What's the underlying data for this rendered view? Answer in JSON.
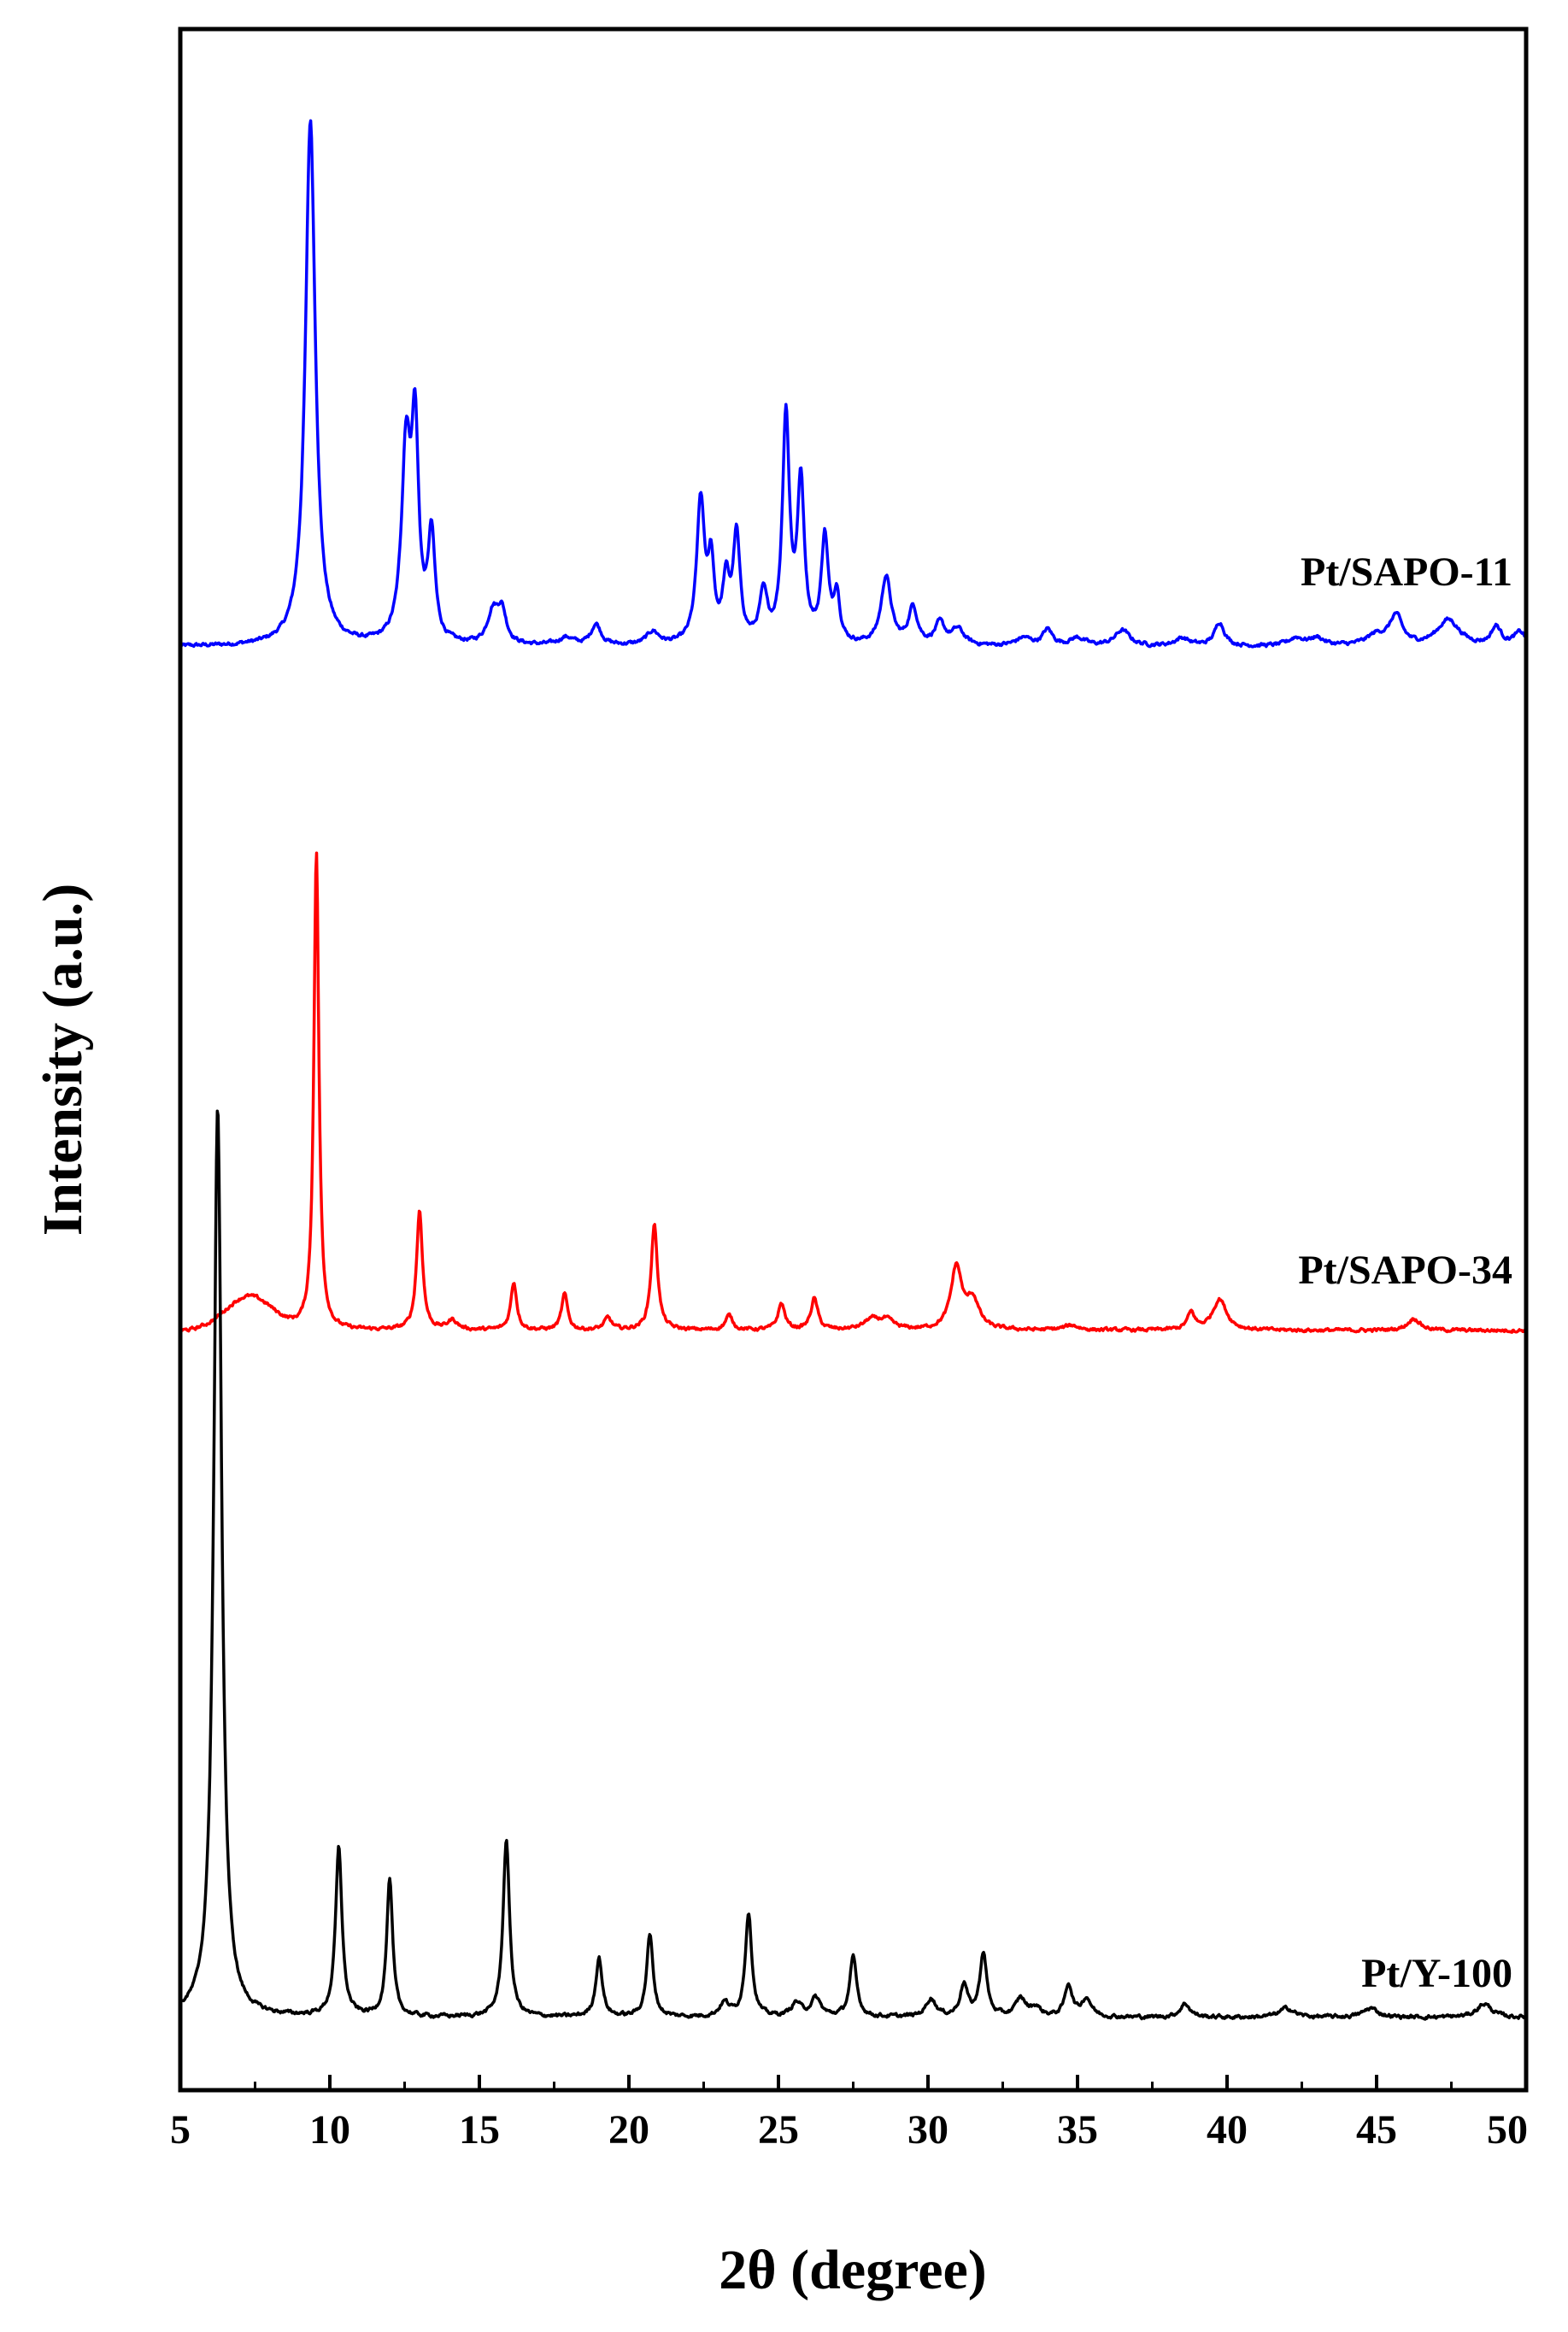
{
  "chart_data": {
    "type": "line",
    "title": "",
    "xlabel": "2θ (degree)",
    "ylabel": "Intensity (a.u.)",
    "xlim": [
      5,
      50
    ],
    "xticks": [
      "5",
      "10",
      "15",
      "20",
      "25",
      "30",
      "35",
      "40",
      "45",
      "50"
    ],
    "yticks_shown": false,
    "grid": false,
    "legend": "inline labels at right end of each trace",
    "series": [
      {
        "name": "Pt/SAPO-11",
        "color": "#0000ff",
        "baseline": 0.17,
        "peaks": [
          [
            9.35,
            100,
            0.2
          ],
          [
            12.55,
            36,
            0.18
          ],
          [
            12.85,
            38,
            0.14
          ],
          [
            13.4,
            20,
            0.14
          ],
          [
            15.45,
            6,
            0.22
          ],
          [
            15.75,
            6,
            0.18
          ],
          [
            17.9,
            1.5,
            0.3
          ],
          [
            18.9,
            4,
            0.2
          ],
          [
            20.8,
            2.5,
            0.25
          ],
          [
            22.4,
            27,
            0.16
          ],
          [
            22.75,
            14,
            0.12
          ],
          [
            23.25,
            11,
            0.14
          ],
          [
            23.6,
            20,
            0.14
          ],
          [
            24.5,
            9,
            0.16
          ],
          [
            25.25,
            43,
            0.14
          ],
          [
            25.75,
            30,
            0.14
          ],
          [
            26.55,
            20,
            0.14
          ],
          [
            26.95,
            9,
            0.12
          ],
          [
            28.6,
            13,
            0.2
          ],
          [
            29.5,
            7,
            0.18
          ],
          [
            30.4,
            4,
            0.2
          ],
          [
            31.0,
            3,
            0.25
          ],
          [
            33.2,
            1.5,
            0.3
          ],
          [
            34.0,
            3,
            0.2
          ],
          [
            35.0,
            1.5,
            0.3
          ],
          [
            36.5,
            3,
            0.3
          ],
          [
            38.5,
            1.5,
            0.3
          ],
          [
            39.75,
            4.5,
            0.2
          ],
          [
            42.3,
            1.5,
            0.3
          ],
          [
            43.0,
            1.5,
            0.3
          ],
          [
            45.0,
            2,
            0.4
          ],
          [
            45.65,
            5.5,
            0.25
          ],
          [
            47.4,
            5,
            0.45
          ],
          [
            49.0,
            3.5,
            0.2
          ],
          [
            49.8,
            2.5,
            0.25
          ]
        ]
      },
      {
        "name": "Pt/SAPO-34",
        "color": "#ff0000",
        "baseline": 0.17,
        "hump": [
          7.3,
          7,
          1.1
        ],
        "peaks": [
          [
            9.55,
            100,
            0.1
          ],
          [
            13.0,
            25,
            0.12
          ],
          [
            14.1,
            2,
            0.2
          ],
          [
            16.15,
            10,
            0.12
          ],
          [
            17.85,
            7.5,
            0.12
          ],
          [
            19.3,
            2.5,
            0.15
          ],
          [
            20.85,
            22,
            0.13
          ],
          [
            23.35,
            3,
            0.15
          ],
          [
            25.1,
            5.5,
            0.14
          ],
          [
            26.2,
            6.5,
            0.14
          ],
          [
            28.1,
            2,
            0.3
          ],
          [
            28.6,
            2,
            0.3
          ],
          [
            30.95,
            13,
            0.22
          ],
          [
            31.5,
            6,
            0.25
          ],
          [
            34.8,
            1,
            0.3
          ],
          [
            38.8,
            3.5,
            0.15
          ],
          [
            39.75,
            6.5,
            0.28
          ],
          [
            46.25,
            2.5,
            0.25
          ]
        ]
      },
      {
        "name": "Pt/Y-100",
        "color": "#000000",
        "baseline": 0.0,
        "peaks": [
          [
            6.25,
            100,
            0.16
          ],
          [
            10.3,
            18.5,
            0.13
          ],
          [
            12.0,
            15,
            0.12
          ],
          [
            15.9,
            19.5,
            0.13
          ],
          [
            19.0,
            6.5,
            0.13
          ],
          [
            20.7,
            9,
            0.13
          ],
          [
            23.2,
            1.5,
            0.2
          ],
          [
            24.0,
            11.5,
            0.13
          ],
          [
            25.6,
            1.5,
            0.2
          ],
          [
            26.25,
            2,
            0.2
          ],
          [
            27.5,
            6.5,
            0.14
          ],
          [
            30.1,
            2,
            0.2
          ],
          [
            31.2,
            3.5,
            0.15
          ],
          [
            31.85,
            7,
            0.14
          ],
          [
            33.1,
            2,
            0.2
          ],
          [
            33.6,
            1,
            0.2
          ],
          [
            34.7,
            3.5,
            0.15
          ],
          [
            35.3,
            2,
            0.2
          ],
          [
            38.6,
            1.5,
            0.2
          ],
          [
            42.0,
            1,
            0.3
          ],
          [
            44.8,
            1,
            0.3
          ],
          [
            48.6,
            1.5,
            0.3
          ]
        ]
      }
    ]
  }
}
